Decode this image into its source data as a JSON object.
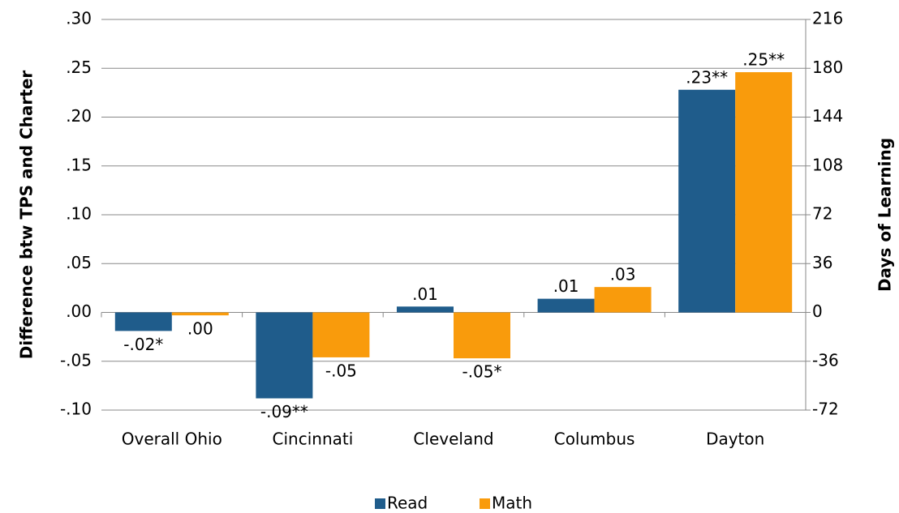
{
  "chart_data": {
    "type": "bar",
    "y_label": "Difference btw TPS and Charter",
    "y2_label": "Days of Learning",
    "categories": [
      "Overall Ohio",
      "Cincinnati",
      "Cleveland",
      "Columbus",
      "Dayton"
    ],
    "series": [
      {
        "name": "Read",
        "color": "#1f5c8b",
        "values": [
          -0.019,
          -0.088,
          0.006,
          0.014,
          0.228
        ],
        "value_labels": [
          "-.02*",
          "-.09**",
          ".01",
          ".01",
          ".23**"
        ]
      },
      {
        "name": "Math",
        "color": "#f99b0c",
        "values": [
          -0.003,
          -0.046,
          -0.047,
          0.026,
          0.246
        ],
        "value_labels": [
          ".00",
          "-.05",
          "-.05*",
          ".03",
          ".25**"
        ]
      }
    ],
    "ylim": [
      -0.1,
      0.3
    ],
    "yticks": [
      {
        "value": -0.1,
        "label": "-.10"
      },
      {
        "value": -0.05,
        "label": "-.05"
      },
      {
        "value": 0,
        "label": ".00"
      },
      {
        "value": 0.05,
        "label": ".05"
      },
      {
        "value": 0.1,
        "label": ".10"
      },
      {
        "value": 0.15,
        "label": ".15"
      },
      {
        "value": 0.2,
        "label": ".20"
      },
      {
        "value": 0.25,
        "label": ".25"
      },
      {
        "value": 0.3,
        "label": ".30"
      }
    ],
    "y2lim": [
      -72,
      216
    ],
    "y2ticks": [
      -72,
      -36,
      0,
      36,
      72,
      108,
      144,
      180,
      216
    ],
    "grid": true
  }
}
